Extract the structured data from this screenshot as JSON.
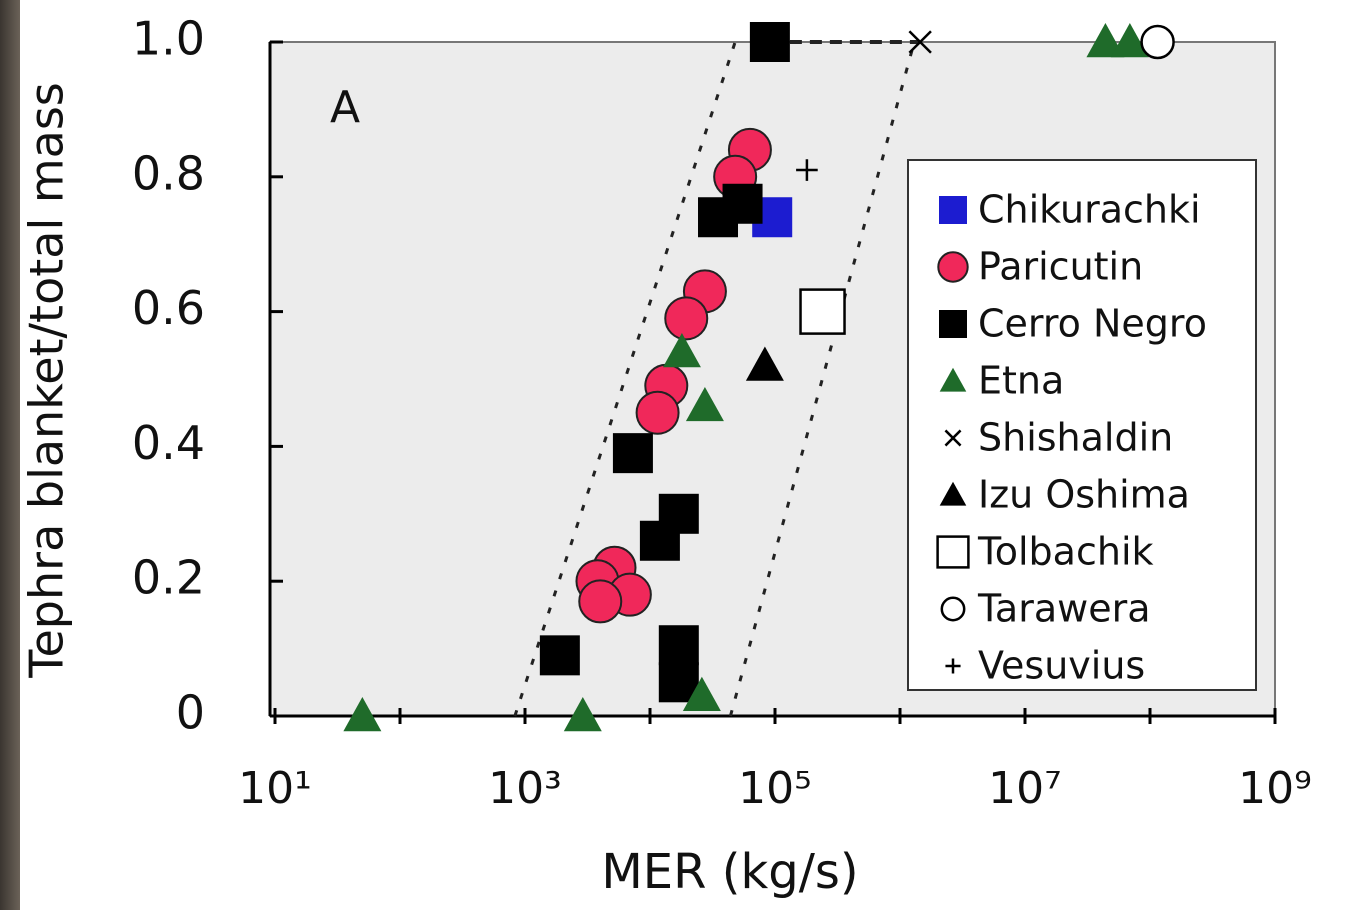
{
  "chart_data": {
    "type": "scatter",
    "panel_label": "A",
    "x_label": "MER (kg/s)",
    "y_label": "Tephra blanket/total mass",
    "xscale": "log",
    "xlim": [
      10,
      1000000000
    ],
    "ylim": [
      0,
      1
    ],
    "xticks": [
      {
        "value": 10,
        "label": "10¹"
      },
      {
        "value": 1000,
        "label": "10³"
      },
      {
        "value": 100000,
        "label": "10⁵"
      },
      {
        "value": 10000000,
        "label": "10⁷"
      },
      {
        "value": 1000000000,
        "label": "10⁹"
      }
    ],
    "xminor_ticks": [
      100,
      10000,
      1000000,
      100000000
    ],
    "yticks": [
      0,
      0.2,
      0.4,
      0.6,
      0.8,
      {
        "value": 1,
        "label": "1.0"
      }
    ],
    "plot_background": "#ececec",
    "series": [
      {
        "name": "Chikurachki",
        "marker": "square",
        "color": "#1c1cd0",
        "x": [
          95000
        ],
        "values": [
          0.74
        ]
      },
      {
        "name": "Paricutin",
        "marker": "circle",
        "color": "#f0285a",
        "x": [
          63000,
          48000,
          27500,
          19500,
          13500,
          11500,
          5200,
          3800,
          6900,
          4000
        ],
        "values": [
          0.84,
          0.8,
          0.63,
          0.59,
          0.49,
          0.45,
          0.22,
          0.2,
          0.18,
          0.17
        ]
      },
      {
        "name": "Cerro Negro",
        "marker": "square",
        "color": "#000000",
        "x": [
          91000,
          55000,
          35000,
          7300,
          17000,
          12000,
          1900,
          17000,
          17000
        ],
        "values": [
          1,
          0.76,
          0.74,
          0.39,
          0.3,
          0.26,
          0.09,
          0.105,
          0.05
        ]
      },
      {
        "name": "Etna",
        "marker": "triangle",
        "color": "#1f6b2a",
        "x": [
          50,
          2900,
          26000,
          18000,
          27500,
          44000000,
          69000000
        ],
        "values": [
          0,
          0,
          0.03,
          0.54,
          0.46,
          1,
          1
        ]
      },
      {
        "name": "Shishaldin",
        "marker": "x",
        "color": "#000000",
        "x": [
          1450000
        ],
        "values": [
          1
        ]
      },
      {
        "name": "Izu Oshima",
        "marker": "triangle",
        "color": "#000000",
        "x": [
          83000
        ],
        "values": [
          0.52
        ]
      },
      {
        "name": "Tolbachik",
        "marker": "open-square",
        "color": "#000000",
        "x": [
          240000
        ],
        "values": [
          0.6
        ]
      },
      {
        "name": "Tarawera",
        "marker": "open-circle",
        "color": "#000000",
        "x": [
          115000000
        ],
        "values": [
          1
        ]
      },
      {
        "name": "Vesuvius",
        "marker": "plus",
        "color": "#000000",
        "x": [
          180000
        ],
        "values": [
          0.81
        ]
      }
    ],
    "lines": [
      {
        "style": "dotted",
        "x": [
          830,
          48000
        ],
        "y": [
          0,
          1
        ]
      },
      {
        "style": "dotted",
        "x": [
          44000,
          1300000
        ],
        "y": [
          0,
          1
        ]
      },
      {
        "style": "dashed",
        "x": [
          91000,
          1450000
        ],
        "y": [
          1,
          1
        ]
      }
    ]
  }
}
